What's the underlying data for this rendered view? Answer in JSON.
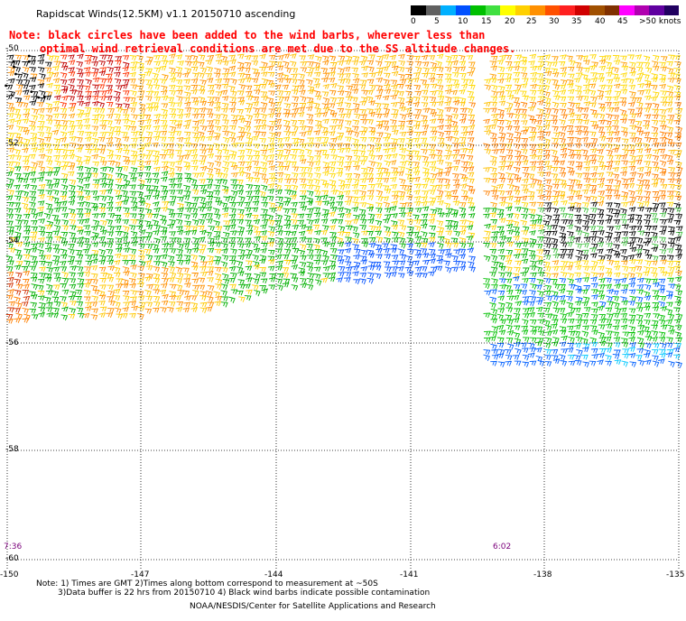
{
  "title": "Rapidscat Winds(12.5KM) v1.1 20150710 ascending",
  "note_line1": "Note: black circles have been added to the wind barbs, wherever less than",
  "note_line2": "optimal wind retrieval conditions are met due to the SS altitude changes.",
  "colorbar": {
    "labels": [
      "0",
      "5",
      "10",
      "15",
      "20",
      "25",
      "30",
      "35",
      "40",
      "45",
      ">50 knots"
    ],
    "colors": [
      "#000000",
      "#606060",
      "#00b0ff",
      "#0050ff",
      "#00c000",
      "#40e040",
      "#ffff00",
      "#ffd000",
      "#ff9000",
      "#ff5000",
      "#ff2020",
      "#d00000",
      "#a05000",
      "#803000",
      "#ff00ff",
      "#b000b0",
      "#6000a0",
      "#200060"
    ]
  },
  "lat_labels": [
    "-50",
    "-52",
    "-54",
    "-56",
    "-58",
    "-60"
  ],
  "lon_labels": [
    "-150",
    "-147",
    "-144",
    "-141",
    "-138",
    "-135"
  ],
  "time_labels": [
    "7:36",
    "6:02"
  ],
  "footer": {
    "line1": "Note: 1) Times are GMT 2)Times along bottom correspond to measurement at ~50S",
    "line2": "3)Data buffer is 22 hrs from 20150710 4) Black wind barbs indicate possible contamination",
    "line3": "NOAA/NESDIS/Center for Satellite Applications and Research"
  }
}
